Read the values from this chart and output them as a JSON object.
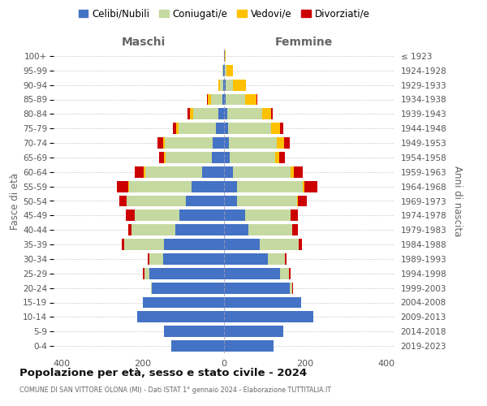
{
  "age_groups": [
    "0-4",
    "5-9",
    "10-14",
    "15-19",
    "20-24",
    "25-29",
    "30-34",
    "35-39",
    "40-44",
    "45-49",
    "50-54",
    "55-59",
    "60-64",
    "65-69",
    "70-74",
    "75-79",
    "80-84",
    "85-89",
    "90-94",
    "95-99",
    "100+"
  ],
  "birth_years": [
    "2019-2023",
    "2014-2018",
    "2009-2013",
    "2004-2008",
    "1999-2003",
    "1994-1998",
    "1989-1993",
    "1984-1988",
    "1979-1983",
    "1974-1978",
    "1969-1973",
    "1964-1968",
    "1959-1963",
    "1954-1958",
    "1949-1953",
    "1944-1948",
    "1939-1943",
    "1934-1938",
    "1929-1933",
    "1924-1928",
    "≤ 1923"
  ],
  "colors": {
    "celibi": "#4472c4",
    "coniugati": "#c5d9a0",
    "vedovi": "#ffc000",
    "divorziati": "#cc0000"
  },
  "maschi": {
    "celibi": [
      130,
      148,
      215,
      200,
      178,
      185,
      150,
      148,
      120,
      110,
      95,
      80,
      55,
      30,
      28,
      20,
      15,
      5,
      3,
      2,
      1
    ],
    "coniugati": [
      0,
      0,
      0,
      0,
      3,
      12,
      35,
      98,
      108,
      110,
      145,
      155,
      140,
      115,
      118,
      92,
      62,
      28,
      8,
      2,
      0
    ],
    "vedovi": [
      0,
      0,
      0,
      0,
      0,
      0,
      0,
      0,
      0,
      0,
      0,
      2,
      4,
      4,
      5,
      6,
      8,
      8,
      3,
      0,
      0
    ],
    "divorziati": [
      0,
      0,
      0,
      0,
      0,
      4,
      4,
      7,
      9,
      22,
      18,
      28,
      22,
      12,
      14,
      8,
      5,
      2,
      0,
      0,
      0
    ]
  },
  "femmine": {
    "celibi": [
      122,
      145,
      220,
      190,
      162,
      138,
      108,
      88,
      60,
      52,
      32,
      32,
      22,
      14,
      12,
      10,
      8,
      4,
      4,
      2,
      1
    ],
    "coniugati": [
      0,
      0,
      0,
      0,
      5,
      22,
      42,
      95,
      108,
      112,
      148,
      162,
      142,
      112,
      118,
      105,
      85,
      48,
      18,
      4,
      0
    ],
    "vedovi": [
      0,
      0,
      0,
      0,
      0,
      0,
      0,
      0,
      0,
      0,
      2,
      4,
      7,
      9,
      18,
      22,
      22,
      28,
      32,
      16,
      2
    ],
    "divorziati": [
      0,
      0,
      0,
      0,
      2,
      4,
      4,
      9,
      14,
      18,
      22,
      32,
      22,
      14,
      14,
      9,
      4,
      2,
      0,
      0,
      0
    ]
  },
  "xlim": 420,
  "xticks": [
    -400,
    -200,
    0,
    200,
    400
  ],
  "title": "Popolazione per età, sesso e stato civile - 2024",
  "subtitle": "COMUNE DI SAN VITTORE OLONA (MI) - Dati ISTAT 1° gennaio 2024 - Elaborazione TUTTITALIA.IT",
  "xlabel_left": "Maschi",
  "xlabel_right": "Femmine",
  "ylabel_left": "Fasce di età",
  "ylabel_right": "Anni di nascita",
  "bg_color": "#ffffff",
  "grid_color": "#cccccc",
  "legend_labels": [
    "Celibi/Nubili",
    "Coniugati/e",
    "Vedovi/e",
    "Divorziati/e"
  ]
}
